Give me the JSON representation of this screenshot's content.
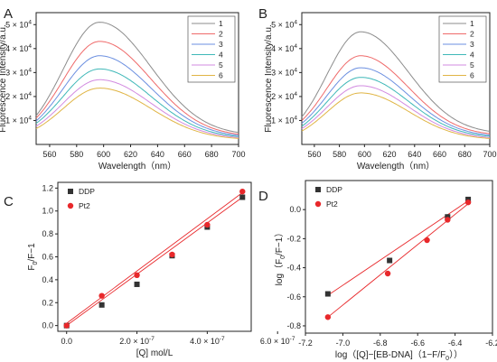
{
  "chart_data": [
    {
      "panel": "A",
      "type": "line",
      "xlabel": "Wavelength（nm）",
      "ylabel": "Fluorescence Intensity/a.u.",
      "xlim": [
        550,
        700
      ],
      "ylim": [
        0,
        55000
      ],
      "xticks": [
        "560",
        "580",
        "600",
        "620",
        "640",
        "660",
        "680",
        "700"
      ],
      "yticks": [
        "1 x 10^4",
        "2 x 10^4",
        "3 x 10^4",
        "4 x 10^4",
        "5 x 10^4"
      ],
      "peak_x": 597,
      "x_end": 700,
      "legend_position": "top-right",
      "series": [
        {
          "name": "1",
          "color": "#8c8c8c",
          "y_start": 12000,
          "peak": 51000,
          "y_end": 5000
        },
        {
          "name": "2",
          "color": "#ef6a6a",
          "y_start": 11000,
          "peak": 43000,
          "y_end": 4300
        },
        {
          "name": "3",
          "color": "#6b8fe0",
          "y_start": 9800,
          "peak": 37000,
          "y_end": 3800
        },
        {
          "name": "4",
          "color": "#3fb8b8",
          "y_start": 8800,
          "peak": 31500,
          "y_end": 3300
        },
        {
          "name": "5",
          "color": "#d28be0",
          "y_start": 7600,
          "peak": 27000,
          "y_end": 2900
        },
        {
          "name": "6",
          "color": "#e0b545",
          "y_start": 6600,
          "peak": 23500,
          "y_end": 2500
        }
      ]
    },
    {
      "panel": "B",
      "type": "line",
      "xlabel": "Wavelength（nm）",
      "ylabel": "Fluorescence Intensity/a.u.",
      "xlim": [
        550,
        700
      ],
      "ylim": [
        0,
        55000
      ],
      "xticks": [
        "560",
        "580",
        "600",
        "620",
        "640",
        "660",
        "680",
        "700"
      ],
      "yticks": [
        "1 x 10^4",
        "2 x 10^4",
        "3 x 10^4",
        "4 x 10^4",
        "5 x 10^4"
      ],
      "peak_x": 597,
      "x_end": 700,
      "legend_position": "top-right",
      "series": [
        {
          "name": "1",
          "color": "#8c8c8c",
          "y_start": 11500,
          "peak": 47000,
          "y_end": 5500
        },
        {
          "name": "2",
          "color": "#ef6a6a",
          "y_start": 10000,
          "peak": 37000,
          "y_end": 4500
        },
        {
          "name": "3",
          "color": "#6b8fe0",
          "y_start": 8800,
          "peak": 32000,
          "y_end": 3900
        },
        {
          "name": "4",
          "color": "#3fb8b8",
          "y_start": 7600,
          "peak": 28000,
          "y_end": 3400
        },
        {
          "name": "5",
          "color": "#d28be0",
          "y_start": 6600,
          "peak": 24500,
          "y_end": 2900
        },
        {
          "name": "6",
          "color": "#e0b545",
          "y_start": 5600,
          "peak": 21500,
          "y_end": 2500
        }
      ]
    },
    {
      "panel": "C",
      "type": "scatter",
      "xlabel": "[Q] mol/L",
      "ylabel": "F0/F−1",
      "xlim": [
        -2.5e-08,
        5.25e-07
      ],
      "ylim": [
        -0.05,
        1.25
      ],
      "xticks": [
        "0.0",
        "2.0 x 10^-7",
        "4.0 x 10^-7",
        "6.0 x 10^-7"
      ],
      "xtick_values": [
        0,
        2e-07,
        4e-07,
        6e-07
      ],
      "yticks": [
        "0.0",
        "0.2",
        "0.4",
        "0.6",
        "0.8",
        "1.0",
        "1.2"
      ],
      "legend_position": "top-left",
      "series": [
        {
          "name": "DDP",
          "marker": "square",
          "color": "#333333",
          "x": [
            0,
            1e-07,
            2e-07,
            3e-07,
            4e-07,
            5e-07
          ],
          "y": [
            0.0,
            0.18,
            0.36,
            0.61,
            0.86,
            1.12
          ],
          "fit": [
            [
              0,
              0.0
            ],
            [
              5e-07,
              1.12
            ]
          ]
        },
        {
          "name": "Pt2",
          "marker": "circle",
          "color": "#e8282b",
          "x": [
            0,
            1e-07,
            2e-07,
            3e-07,
            4e-07,
            5e-07
          ],
          "y": [
            0.0,
            0.26,
            0.44,
            0.62,
            0.88,
            1.17
          ],
          "fit": [
            [
              0,
              0.02
            ],
            [
              5e-07,
              1.16
            ]
          ]
        }
      ]
    },
    {
      "panel": "D",
      "type": "scatter",
      "xlabel": "log（[Q]−[EB-DNA]（1−F/F0））",
      "ylabel": "log（F0/F−1）",
      "xlim": [
        -7.2,
        -6.2
      ],
      "ylim": [
        -0.85,
        0.2
      ],
      "xticks": [
        "-7.2",
        "-7.0",
        "-6.8",
        "-6.6",
        "-6.4",
        "-6.2"
      ],
      "xtick_values": [
        -7.2,
        -7.0,
        -6.8,
        -6.6,
        -6.4,
        -6.2
      ],
      "yticks": [
        "-0.8",
        "-0.6",
        "-0.4",
        "-0.2",
        "0.0"
      ],
      "ytick_values": [
        -0.8,
        -0.6,
        -0.4,
        -0.2,
        0.0
      ],
      "legend_position": "top-left",
      "series": [
        {
          "name": "DDP",
          "marker": "square",
          "color": "#333333",
          "x": [
            -7.08,
            -6.75,
            -6.44,
            -6.33
          ],
          "y": [
            -0.58,
            -0.35,
            -0.05,
            0.07
          ],
          "fit": [
            [
              -7.08,
              -0.59
            ],
            [
              -6.33,
              0.06
            ]
          ]
        },
        {
          "name": "Pt2",
          "marker": "circle",
          "color": "#e8282b",
          "x": [
            -7.08,
            -6.76,
            -6.55,
            -6.44,
            -6.33
          ],
          "y": [
            -0.74,
            -0.44,
            -0.21,
            -0.07,
            0.05
          ],
          "fit": [
            [
              -7.08,
              -0.74
            ],
            [
              -6.33,
              0.04
            ]
          ]
        }
      ]
    }
  ]
}
